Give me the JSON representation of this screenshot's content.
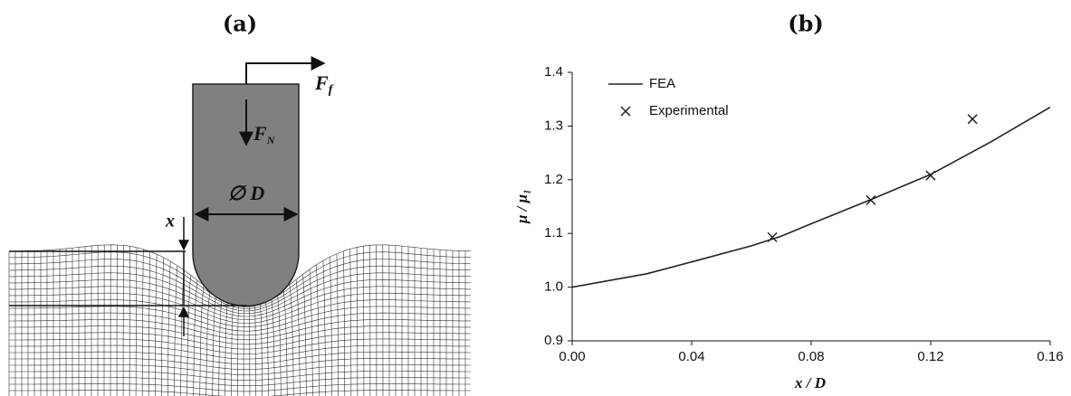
{
  "diagram": {
    "label": "(a)",
    "friction_force": {
      "symbol": "F",
      "subscript": "f"
    },
    "normal_force": {
      "symbol": "F",
      "subscript": "N"
    },
    "diameter": "∅ D",
    "depth": "x"
  },
  "chart_data": {
    "type": "line",
    "title": "(b)",
    "xlabel": "x / D",
    "ylabel": "μ / μ₁",
    "series": [
      {
        "name": "FEA",
        "kind": "line",
        "color": "#222222",
        "x": [
          0,
          0.025,
          0.04,
          0.06,
          0.07,
          0.08,
          0.1,
          0.12,
          0.14,
          0.16
        ],
        "values": [
          1.0,
          1.025,
          1.047,
          1.077,
          1.095,
          1.118,
          1.163,
          1.21,
          1.27,
          1.335
        ]
      },
      {
        "name": "Experimental",
        "kind": "scatter",
        "color": "#222222",
        "x": [
          0.067,
          0.1,
          0.12,
          0.134
        ],
        "values": [
          1.093,
          1.162,
          1.208,
          1.313
        ]
      }
    ],
    "xlim": [
      0,
      0.16
    ],
    "xticks": [
      {
        "value": 0,
        "label": "0.00"
      },
      {
        "value": 0.04,
        "label": "0.04"
      },
      {
        "value": 0.08,
        "label": "0.08"
      },
      {
        "value": 0.12,
        "label": "0.12"
      },
      {
        "value": 0.16,
        "label": "0.16"
      }
    ],
    "ylim": [
      0.9,
      1.4
    ],
    "yticks": [
      0.9,
      {
        "value": 1.0,
        "label": "1.0"
      },
      1.1,
      1.2,
      1.3,
      1.4
    ],
    "grid": false
  }
}
